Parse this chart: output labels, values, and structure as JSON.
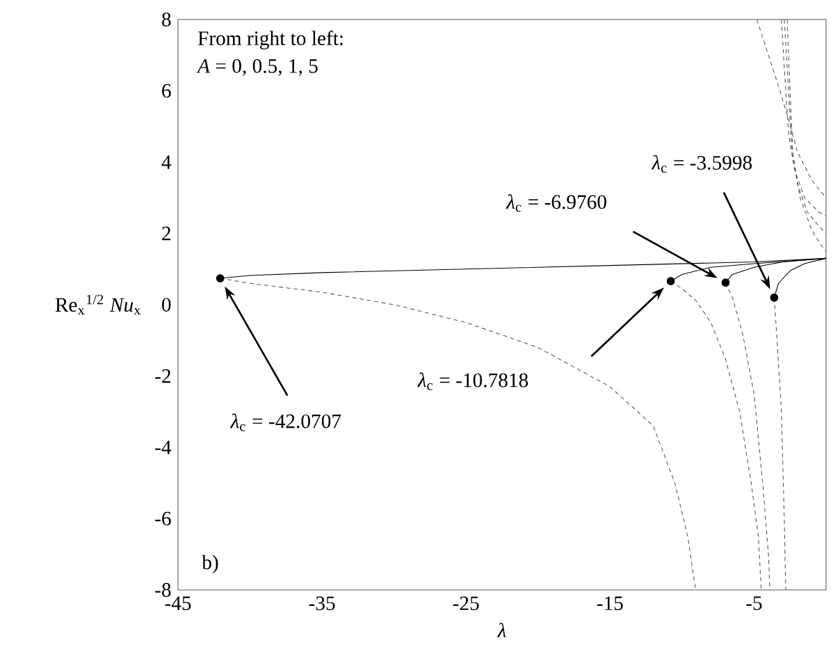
{
  "chart_data": {
    "type": "line",
    "xlabel": "λ",
    "ylabel": "Re$_{x}$$^{1/2}$ *Nu*$_{x}$",
    "xlim": [
      -45,
      0
    ],
    "ylim": [
      -8,
      8
    ],
    "xticks": [
      -45,
      -35,
      -25,
      -15,
      -5
    ],
    "yticks": [
      -8,
      -6,
      -4,
      -2,
      0,
      2,
      4,
      6,
      8
    ],
    "annotations": [
      "From right to left:",
      "*A* = 0, 0.5, 1, 5",
      "b)",
      "*λ*$_{c}$ = -42.0707",
      "*λ*$_{c}$ = -10.7818",
      "*λ*$_{c}$ = -6.9760",
      "*λ*$_{c}$ = -3.5998"
    ],
    "series": [
      {
        "color": "#000000",
        "line_style": "solid",
        "x": [
          -42.0707,
          -40,
          -35,
          -25,
          -15,
          -5,
          0
        ],
        "values": [
          0.74,
          0.82,
          0.9,
          1.0,
          1.1,
          1.2,
          1.3
        ]
      },
      {
        "type": "line",
        "color": "#555555",
        "line_style": "dashed",
        "x": [
          -42.0707,
          -40,
          -35,
          -30,
          -25,
          -20,
          -15,
          -12,
          -10.5,
          -9.6,
          -9.06
        ],
        "values": [
          0.74,
          0.6,
          0.35,
          0.0,
          -0.5,
          -1.2,
          -2.3,
          -3.4,
          -5,
          -6.5,
          -8
        ]
      },
      {
        "type": "line",
        "color": "#000000",
        "line_style": "solid",
        "x": [
          -10.7818,
          -10,
          -8,
          -5,
          0
        ],
        "values": [
          0.66,
          0.85,
          1.05,
          1.15,
          1.3
        ]
      },
      {
        "type": "line",
        "color": "#555555",
        "line_style": "dashed",
        "x": [
          -10.7818,
          -10,
          -9,
          -8,
          -7,
          -6,
          -5.2,
          -4.7,
          -4.5
        ],
        "values": [
          0.66,
          0.45,
          0.1,
          -0.5,
          -1.5,
          -3,
          -5,
          -6.5,
          -8
        ]
      },
      {
        "type": "line",
        "color": "#000000",
        "line_style": "solid",
        "x": [
          -6.976,
          -6.5,
          -5,
          -3,
          0
        ],
        "values": [
          0.62,
          0.85,
          1.05,
          1.2,
          1.3
        ]
      },
      {
        "type": "line",
        "color": "#555555",
        "line_style": "dashed",
        "x": [
          -6.976,
          -6.5,
          -5.8,
          -5,
          -4.4,
          -4.0,
          -3.9
        ],
        "values": [
          0.62,
          0.2,
          -0.8,
          -2.5,
          -5,
          -7,
          -8
        ]
      },
      {
        "type": "line",
        "color": "#000000",
        "line_style": "solid",
        "x": [
          -3.5998,
          -3.3,
          -2.5,
          -1.5,
          0
        ],
        "values": [
          0.2,
          0.6,
          0.95,
          1.15,
          1.3
        ]
      },
      {
        "type": "line",
        "color": "#555555",
        "line_style": "dashed",
        "x": [
          -3.5998,
          -3.4,
          -3.1,
          -2.9,
          -2.8
        ],
        "values": [
          0.2,
          -1,
          -3,
          -6,
          -8
        ]
      },
      {
        "type": "line",
        "color": "#555555",
        "line_style": "dashed",
        "x": [
          -4.8,
          -4.0,
          -3.2,
          -2.6,
          -2,
          -1,
          0
        ],
        "values": [
          8,
          7,
          6,
          5.2,
          4.3,
          3.5,
          3.0
        ]
      },
      {
        "type": "line",
        "color": "#555555",
        "line_style": "dashed",
        "x": [
          -3.1,
          -2.8,
          -2.6,
          -2.2,
          -1.5,
          -0.5,
          0
        ],
        "values": [
          8,
          6,
          4.8,
          3.8,
          3.0,
          2.6,
          2.5
        ]
      },
      {
        "type": "line",
        "color": "#555555",
        "line_style": "dashed",
        "x": [
          -2.9,
          -2.6,
          -2.4,
          -2,
          -1.3,
          -0.5,
          0
        ],
        "values": [
          8,
          6,
          4.5,
          3.4,
          2.6,
          2.2,
          2.0
        ]
      },
      {
        "type": "line",
        "color": "#555555",
        "line_style": "dashed",
        "x": [
          -2.7,
          -2.5,
          -2.3,
          -1.8,
          -1,
          -0.4,
          0
        ],
        "values": [
          8,
          6,
          4.2,
          3.0,
          2.1,
          1.7,
          1.5
        ]
      },
      {
        "type": "scatter",
        "color": "#000000",
        "marker": "circle",
        "x": [
          -42.0707,
          -10.7818,
          -6.976,
          -3.5998
        ],
        "values": [
          0.74,
          0.66,
          0.62,
          0.2
        ]
      }
    ]
  }
}
